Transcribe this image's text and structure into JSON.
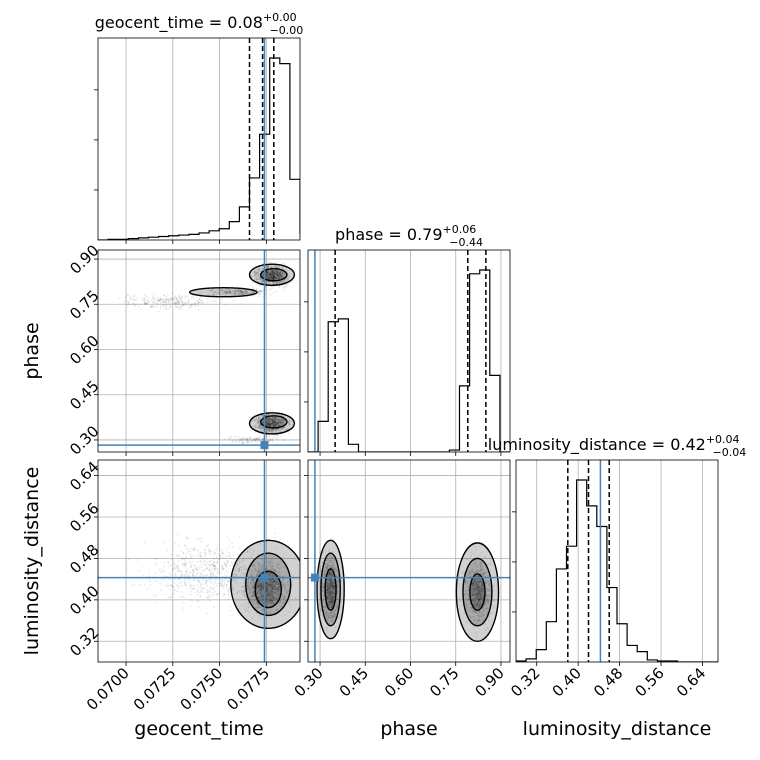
{
  "chart_data": {
    "type": "corner",
    "parameters": [
      "geocent_time",
      "phase",
      "luminosity_distance"
    ],
    "titles": [
      {
        "param": "geocent_time",
        "label": "geocent_time = 0.08",
        "sup": "+0.00",
        "sub": "−0.00"
      },
      {
        "param": "phase",
        "label": "phase = 0.79",
        "sup": "+0.06",
        "sub": "−0.44"
      },
      {
        "param": "luminosity_distance",
        "label": "luminosity_distance = 0.42",
        "sup": "+0.04",
        "sub": "−0.04"
      }
    ],
    "axes": {
      "geocent_time": {
        "range": [
          0.0685,
          0.0793
        ],
        "ticks": [
          0.07,
          0.0725,
          0.075,
          0.0775
        ],
        "tick_labels": [
          "0.0700",
          "0.0725",
          "0.0750",
          "0.0775"
        ]
      },
      "phase": {
        "range": [
          0.26,
          0.93
        ],
        "ticks": [
          0.3,
          0.45,
          0.6,
          0.75,
          0.9
        ],
        "tick_labels": [
          "0.30",
          "0.45",
          "0.60",
          "0.75",
          "0.90"
        ]
      },
      "luminosity_distance": {
        "range": [
          0.28,
          0.67
        ],
        "ticks": [
          0.32,
          0.4,
          0.48,
          0.56,
          0.64
        ],
        "tick_labels": [
          "0.32",
          "0.40",
          "0.48",
          "0.56",
          "0.64"
        ]
      }
    },
    "truths": {
      "geocent_time": 0.0774,
      "phase": 0.283,
      "luminosity_distance": 0.443
    },
    "quantiles": {
      "geocent_time": [
        0.0766,
        0.0773,
        0.0779
      ],
      "phase": [
        0.35,
        0.79,
        0.85
      ],
      "luminosity_distance": [
        0.38,
        0.42,
        0.46
      ]
    },
    "hist1d": {
      "geocent_time": {
        "edges_start": 0.0685,
        "bin_width": 0.00054,
        "counts": [
          0,
          1,
          1,
          2,
          3,
          4,
          5,
          6,
          7,
          8,
          10,
          13,
          16,
          26,
          47,
          88,
          150,
          258,
          250,
          86,
          9,
          0
        ]
      },
      "phase": {
        "edges_start": 0.26,
        "bin_width": 0.0335,
        "counts": [
          0,
          32,
          136,
          139,
          8,
          0,
          0,
          0,
          0,
          0,
          0,
          0,
          0,
          0,
          2,
          69,
          186,
          190,
          80,
          0
        ]
      },
      "luminosity_distance": {
        "edges_start": 0.28,
        "bin_width": 0.0195,
        "counts": [
          1,
          3,
          12,
          39,
          90,
          112,
          176,
          151,
          131,
          72,
          37,
          16,
          10,
          2,
          1,
          1,
          0,
          0,
          0,
          0
        ]
      }
    },
    "grid": true,
    "series_color": "#000000",
    "truth_color": "#4682b4"
  }
}
